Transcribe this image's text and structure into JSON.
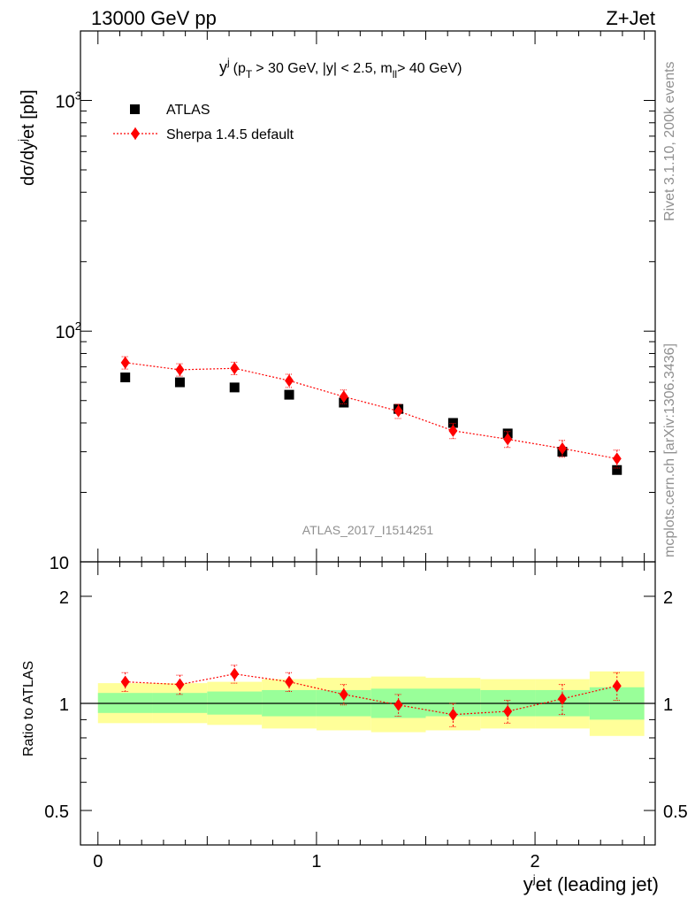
{
  "header": {
    "left": "13000 GeV pp",
    "right": "Z+Jet"
  },
  "side_labels": {
    "rivet": "Rivet 3.1.10,  200k events",
    "mcplots": "mcplots.cern.ch [arXiv:1306.3436]"
  },
  "chart_data": [
    {
      "type": "scatter",
      "title": "y^j (p_T > 30 GeV, |y| < 2.5, m_ll > 40 GeV)",
      "title_parts": {
        "y": "y",
        "sup_j": "j",
        "p": "(p",
        "T": "T",
        "mid": "> 30 GeV, |y| < 2.5, m",
        "ll": "ll",
        "end": "> 40 GeV)"
      },
      "ylabel": "dσ/dy^jet [pb]",
      "ylabel_parts": {
        "a": "dσ/dy",
        "sup": "j",
        "b": "et [pb]"
      },
      "yscale": "log",
      "ylim": [
        10,
        2000
      ],
      "xlim": [
        -0.08,
        2.55
      ],
      "y_ticks": [
        {
          "value": 10,
          "label": "10"
        },
        {
          "value": 100,
          "label": "10",
          "sup": "2"
        },
        {
          "value": 1000,
          "label": "10",
          "sup": "3"
        }
      ],
      "watermark": "ATLAS_2017_I1514251",
      "legend": [
        {
          "name": "ATLAS",
          "marker": "square",
          "color": "#000000"
        },
        {
          "name": "Sherpa 1.4.5 default",
          "marker": "diamond",
          "color": "#ff0000"
        }
      ],
      "x": [
        0.125,
        0.375,
        0.625,
        0.875,
        1.125,
        1.375,
        1.625,
        1.875,
        2.125,
        2.375
      ],
      "series": [
        {
          "name": "ATLAS",
          "values": [
            63,
            60,
            57,
            53,
            49,
            46,
            40,
            36,
            30,
            25
          ]
        },
        {
          "name": "Sherpa 1.4.5 default",
          "values": [
            73,
            68,
            69,
            61,
            52,
            45,
            37,
            34,
            31,
            28
          ],
          "err_low": [
            4.5,
            4.2,
            4.3,
            4.0,
            3.6,
            3.2,
            2.8,
            2.7,
            2.6,
            2.5
          ],
          "err_high": [
            4.5,
            4.2,
            4.3,
            4.0,
            3.6,
            3.2,
            2.8,
            2.7,
            2.6,
            2.5
          ]
        }
      ]
    },
    {
      "type": "scatter",
      "ylabel": "Ratio to ATLAS",
      "xlabel": "y^jet (leading jet)",
      "xlabel_parts": {
        "a": "y",
        "sup": "j",
        "b": "et (leading jet)"
      },
      "yscale": "log",
      "ylim": [
        0.4,
        2.5
      ],
      "xlim": [
        -0.08,
        2.55
      ],
      "y_ticks": [
        {
          "value": 0.5,
          "label": "0.5"
        },
        {
          "value": 1,
          "label": "1"
        },
        {
          "value": 2,
          "label": "2"
        }
      ],
      "x_ticks": [
        {
          "value": 0,
          "label": "0"
        },
        {
          "value": 1,
          "label": "1"
        },
        {
          "value": 2,
          "label": "2"
        }
      ],
      "bin_edges": [
        0,
        0.25,
        0.5,
        0.75,
        1.0,
        1.25,
        1.5,
        1.75,
        2.0,
        2.25,
        2.5
      ],
      "band_yellow": {
        "low": [
          0.88,
          0.88,
          0.87,
          0.85,
          0.84,
          0.83,
          0.84,
          0.85,
          0.85,
          0.81
        ],
        "high": [
          1.14,
          1.14,
          1.15,
          1.17,
          1.18,
          1.19,
          1.18,
          1.17,
          1.17,
          1.23
        ]
      },
      "band_green": {
        "low": [
          0.94,
          0.94,
          0.93,
          0.92,
          0.92,
          0.91,
          0.92,
          0.92,
          0.92,
          0.9
        ],
        "high": [
          1.07,
          1.07,
          1.08,
          1.09,
          1.09,
          1.1,
          1.1,
          1.09,
          1.09,
          1.11
        ]
      },
      "series": [
        {
          "name": "Sherpa 1.4.5 default",
          "values": [
            1.15,
            1.13,
            1.21,
            1.15,
            1.06,
            0.99,
            0.93,
            0.95,
            1.03,
            1.12
          ],
          "err_low": [
            0.07,
            0.07,
            0.07,
            0.07,
            0.07,
            0.07,
            0.07,
            0.07,
            0.1,
            0.1
          ],
          "err_high": [
            0.07,
            0.07,
            0.07,
            0.07,
            0.07,
            0.07,
            0.07,
            0.07,
            0.1,
            0.1
          ]
        }
      ]
    }
  ]
}
